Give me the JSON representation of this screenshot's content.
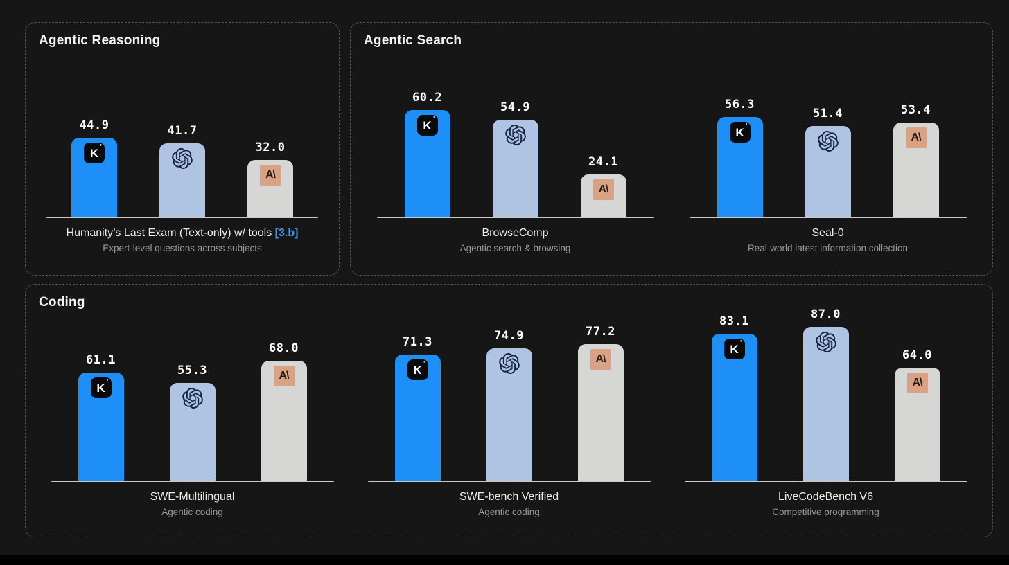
{
  "page": {
    "background": "#161616",
    "bottom_bar_color": "#000000"
  },
  "colors": {
    "kimi_bar": "#1E8FF7",
    "openai_bar": "#AFC3E3",
    "anthropic_bar": "#D6D6D4",
    "kimi_icon_bg": "#0A0A0C",
    "openai_logo": "#16233F",
    "anthropic_icon_bg": "#D9A285",
    "anthropic_glyph_color": "#2A1D14",
    "axis": "#C9C9C9",
    "link": "#4594E6",
    "value_label": "#FFFFFF"
  },
  "icons": {
    "kimi_glyph": "K",
    "kimi_mark": "ʼ",
    "anthropic_glyph": "A\\"
  },
  "sections": [
    {
      "title": "Agentic Reasoning",
      "chart_indices": [
        0
      ]
    },
    {
      "title": "Agentic Search",
      "chart_indices": [
        1,
        2
      ]
    },
    {
      "title": "Coding",
      "chart_indices": [
        3,
        4,
        5
      ]
    }
  ],
  "chart_data": [
    {
      "type": "bar",
      "section": "Agentic Reasoning",
      "title": "Humanity’s Last Exam (Text-only) w/ tools",
      "title_link": "[3.b]",
      "subtitle": "Expert-level questions across subjects",
      "categories": [
        "Kimi",
        "OpenAI",
        "Anthropic"
      ],
      "values": [
        44.9,
        41.7,
        32.0
      ],
      "values_display": [
        "44.9",
        "41.7",
        "32.0"
      ],
      "ylim": [
        0,
        100
      ],
      "grid": false,
      "legend": "none"
    },
    {
      "type": "bar",
      "section": "Agentic Search",
      "title": "BrowseComp",
      "title_link": null,
      "subtitle": "Agentic search & browsing",
      "categories": [
        "Kimi",
        "OpenAI",
        "Anthropic"
      ],
      "values": [
        60.2,
        54.9,
        24.1
      ],
      "values_display": [
        "60.2",
        "54.9",
        "24.1"
      ],
      "ylim": [
        0,
        100
      ],
      "grid": false,
      "legend": "none"
    },
    {
      "type": "bar",
      "section": "Agentic Search",
      "title": "Seal-0",
      "title_link": null,
      "subtitle": "Real-world latest information collection",
      "categories": [
        "Kimi",
        "OpenAI",
        "Anthropic"
      ],
      "values": [
        56.3,
        51.4,
        53.4
      ],
      "values_display": [
        "56.3",
        "51.4",
        "53.4"
      ],
      "ylim": [
        0,
        100
      ],
      "grid": false,
      "legend": "none"
    },
    {
      "type": "bar",
      "section": "Coding",
      "title": "SWE-Multilingual",
      "title_link": null,
      "subtitle": "Agentic coding",
      "categories": [
        "Kimi",
        "OpenAI",
        "Anthropic"
      ],
      "values": [
        61.1,
        55.3,
        68.0
      ],
      "values_display": [
        "61.1",
        "55.3",
        "68.0"
      ],
      "ylim": [
        0,
        100
      ],
      "grid": false,
      "legend": "none"
    },
    {
      "type": "bar",
      "section": "Coding",
      "title": "SWE-bench Verified",
      "title_link": null,
      "subtitle": "Agentic coding",
      "categories": [
        "Kimi",
        "OpenAI",
        "Anthropic"
      ],
      "values": [
        71.3,
        74.9,
        77.2
      ],
      "values_display": [
        "71.3",
        "74.9",
        "77.2"
      ],
      "ylim": [
        0,
        100
      ],
      "grid": false,
      "legend": "none"
    },
    {
      "type": "bar",
      "section": "Coding",
      "title": "LiveCodeBench V6",
      "title_link": null,
      "subtitle": "Competitive programming",
      "categories": [
        "Kimi",
        "OpenAI",
        "Anthropic"
      ],
      "values": [
        83.1,
        87.0,
        64.0
      ],
      "values_display": [
        "83.1",
        "87.0",
        "64.0"
      ],
      "ylim": [
        0,
        100
      ],
      "grid": false,
      "legend": "none"
    }
  ]
}
